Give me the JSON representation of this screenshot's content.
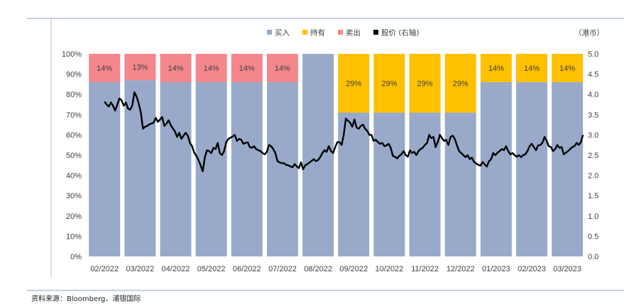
{
  "chart_data": {
    "type": "bar",
    "stacked": true,
    "categories": [
      "02/2022",
      "03/2022",
      "04/2022",
      "05/2022",
      "06/2022",
      "07/2022",
      "08/2022",
      "09/2022",
      "10/2022",
      "11/2022",
      "12/2022",
      "01/2023",
      "02/2023",
      "03/2023"
    ],
    "unit_label": "（港币）",
    "y_left": {
      "ticks": [
        "0%",
        "10%",
        "20%",
        "30%",
        "40%",
        "50%",
        "60%",
        "70%",
        "80%",
        "90%",
        "100%"
      ],
      "range": [
        0,
        100
      ]
    },
    "y_right": {
      "ticks": [
        "0.0",
        "0.5",
        "1.0",
        "1.5",
        "2.0",
        "2.5",
        "3.0",
        "3.5",
        "4.0",
        "4.5",
        "5.0"
      ],
      "range": [
        0,
        5
      ]
    },
    "grid": false,
    "legend_position": "top",
    "series": [
      {
        "name": "买入",
        "kind": "bar",
        "color": "#98A9C9",
        "values": [
          86,
          87,
          86,
          86,
          86,
          86,
          100,
          71,
          71,
          71,
          71,
          86,
          86,
          86
        ]
      },
      {
        "name": "持有",
        "kind": "bar",
        "color": "#FFC000",
        "values": [
          0,
          0,
          0,
          0,
          0,
          0,
          0,
          29,
          29,
          29,
          29,
          14,
          14,
          14
        ],
        "labels": [
          "",
          "",
          "",
          "",
          "",
          "",
          "",
          "29%",
          "29%",
          "29%",
          "29%",
          "14%",
          "14%",
          "14%"
        ]
      },
      {
        "name": "卖出",
        "kind": "bar",
        "color": "#F4878C",
        "values": [
          14,
          13,
          14,
          14,
          14,
          14,
          0,
          0,
          0,
          0,
          0,
          0,
          0,
          0
        ],
        "labels": [
          "14%",
          "13%",
          "14%",
          "14%",
          "14%",
          "14%",
          "",
          "",
          "",
          "",
          "",
          "",
          "",
          ""
        ]
      },
      {
        "name": "股价 (右轴)",
        "kind": "line",
        "axis": "right",
        "color": "#000000",
        "x": [
          0.0,
          0.06,
          0.12,
          0.18,
          0.24,
          0.3,
          0.36,
          0.42,
          0.48,
          0.54,
          0.6,
          0.66,
          0.72,
          0.78,
          0.84,
          0.9,
          0.96,
          1.02,
          1.08,
          1.14,
          1.2,
          1.26,
          1.32,
          1.38,
          1.44,
          1.5,
          1.56,
          1.62,
          1.68,
          1.74,
          1.8,
          1.86,
          1.92,
          1.98,
          2.04,
          2.1,
          2.16,
          2.22,
          2.28,
          2.34,
          2.4,
          2.46,
          2.52,
          2.58,
          2.64,
          2.7,
          2.76,
          2.82,
          2.88,
          2.94,
          3.0,
          3.06,
          3.12,
          3.18,
          3.24,
          3.3,
          3.36,
          3.42,
          3.48,
          3.54,
          3.6,
          3.66,
          3.72,
          3.78,
          3.84,
          3.9,
          3.96,
          4.02,
          4.08,
          4.14,
          4.2,
          4.26,
          4.32,
          4.38,
          4.44,
          4.5,
          4.56,
          4.62,
          4.68,
          4.74,
          4.8,
          4.86,
          4.92,
          4.98,
          5.04,
          5.1,
          5.16,
          5.22,
          5.28,
          5.34,
          5.4,
          5.46,
          5.52,
          5.58,
          5.64,
          5.7,
          5.76,
          5.82,
          5.88,
          5.94,
          6.0,
          6.06,
          6.12,
          6.18,
          6.24,
          6.3,
          6.36,
          6.42,
          6.48,
          6.54,
          6.6,
          6.66,
          6.72,
          6.78,
          6.84,
          6.9,
          6.96,
          7.02,
          7.08,
          7.14,
          7.2,
          7.26,
          7.32,
          7.38,
          7.44,
          7.5,
          7.56,
          7.62,
          7.68,
          7.74,
          7.8,
          7.86,
          7.92,
          7.98,
          8.04,
          8.1,
          8.16,
          8.22,
          8.28,
          8.34,
          8.4,
          8.46,
          8.52,
          8.58,
          8.64,
          8.7,
          8.76,
          8.82,
          8.88,
          8.94,
          9.0,
          9.06,
          9.12,
          9.18,
          9.24,
          9.3,
          9.36,
          9.42,
          9.48,
          9.54,
          9.6,
          9.66,
          9.72,
          9.78,
          9.84,
          9.9,
          9.96,
          10.02,
          10.08,
          10.14,
          10.2,
          10.26,
          10.32,
          10.38,
          10.44,
          10.5,
          10.56,
          10.62,
          10.68,
          10.74,
          10.8,
          10.86,
          10.92,
          10.98,
          11.04,
          11.1,
          11.16,
          11.22,
          11.28,
          11.34,
          11.4,
          11.46,
          11.52,
          11.58,
          11.64,
          11.7,
          11.76,
          11.82,
          11.88,
          11.94,
          12.0,
          12.06,
          12.12,
          12.18,
          12.24,
          12.3,
          12.36,
          12.42,
          12.48,
          12.54,
          12.6,
          12.66,
          12.72,
          12.78,
          12.84,
          12.9,
          12.96,
          13.02,
          13.08,
          13.14,
          13.2,
          13.26,
          13.32,
          13.38,
          13.44
        ],
        "values": [
          3.82,
          3.75,
          3.7,
          3.8,
          3.72,
          3.6,
          3.75,
          3.9,
          3.85,
          3.72,
          3.8,
          3.65,
          3.62,
          3.72,
          4.05,
          3.95,
          3.78,
          3.55,
          3.15,
          3.2,
          3.22,
          3.26,
          3.28,
          3.3,
          3.42,
          3.32,
          3.38,
          3.44,
          3.22,
          3.28,
          3.36,
          3.24,
          3.16,
          3.08,
          2.95,
          3.05,
          2.9,
          2.98,
          3.05,
          2.98,
          2.8,
          2.72,
          2.56,
          2.48,
          2.38,
          2.25,
          2.1,
          2.45,
          2.62,
          2.6,
          2.55,
          2.68,
          2.65,
          2.8,
          2.55,
          2.5,
          2.6,
          2.82,
          2.9,
          2.93,
          2.96,
          3.0,
          2.85,
          2.9,
          2.88,
          2.78,
          2.8,
          2.82,
          2.7,
          2.68,
          2.72,
          2.65,
          2.62,
          2.6,
          2.55,
          2.52,
          2.58,
          2.75,
          2.72,
          2.65,
          2.55,
          2.35,
          2.32,
          2.3,
          2.3,
          2.26,
          2.25,
          2.22,
          2.2,
          2.28,
          2.22,
          2.18,
          2.32,
          2.15,
          2.25,
          2.28,
          2.32,
          2.36,
          2.4,
          2.35,
          2.38,
          2.45,
          2.55,
          2.62,
          2.58,
          2.72,
          2.6,
          2.55,
          2.7,
          2.82,
          2.82,
          2.75,
          3.0,
          3.4,
          3.35,
          3.3,
          3.2,
          3.38,
          3.18,
          3.15,
          3.22,
          3.25,
          3.15,
          3.1,
          3.0,
          3.0,
          2.85,
          2.88,
          2.82,
          2.78,
          2.8,
          2.72,
          2.74,
          2.78,
          2.68,
          2.48,
          2.46,
          2.42,
          2.48,
          2.52,
          2.6,
          2.5,
          2.46,
          2.62,
          2.55,
          2.58,
          2.5,
          2.6,
          2.65,
          2.68,
          2.75,
          2.8,
          3.0,
          2.92,
          2.95,
          2.7,
          2.82,
          3.0,
          2.92,
          2.85,
          2.88,
          2.75,
          2.95,
          2.98,
          2.9,
          2.74,
          2.6,
          2.55,
          2.5,
          2.45,
          2.5,
          2.4,
          2.44,
          2.33,
          2.29,
          2.26,
          2.24,
          2.33,
          2.27,
          2.22,
          2.35,
          2.4,
          2.55,
          2.5,
          2.56,
          2.6,
          2.65,
          2.62,
          2.72,
          2.6,
          2.52,
          2.55,
          2.5,
          2.46,
          2.5,
          2.45,
          2.5,
          2.52,
          2.6,
          2.72,
          2.78,
          2.7,
          2.62,
          2.74,
          2.75,
          2.8,
          2.95,
          2.85,
          2.72,
          2.7,
          2.6,
          2.65,
          2.75,
          2.68,
          2.7,
          2.52,
          2.56,
          2.6,
          2.65,
          2.7,
          2.72,
          2.8,
          2.75,
          2.82,
          3.0
        ]
      }
    ]
  },
  "source_note": "资料来源：Bloomberg、浦银国际"
}
